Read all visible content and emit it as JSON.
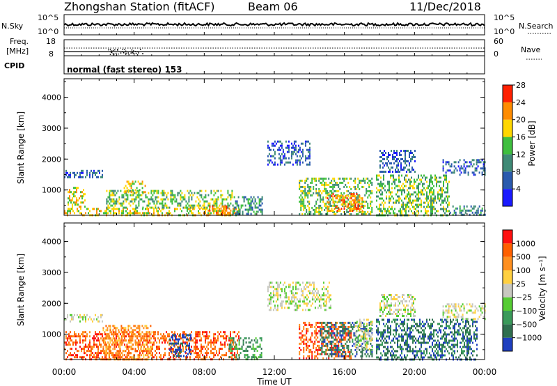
{
  "header": {
    "station": "Zhongshan Station (fitACF)",
    "beam": "Beam 06",
    "date": "11/Dec/2018"
  },
  "noise_panel": {
    "left_label": "N.Sky",
    "left_ticks": [
      "10^5",
      "10^0"
    ],
    "right_ticks": [
      "10^5",
      "10^0"
    ],
    "right_label": "N.Search"
  },
  "freq_panel": {
    "label_line1": "Freq.",
    "label_line2": "[MHz]",
    "left_ticks": [
      "18",
      "8"
    ],
    "right_ticks": [
      "60",
      "0"
    ],
    "right_label": "Nave"
  },
  "cpid_panel": {
    "label": "CPID",
    "text": "normal (fast stereo) 153"
  },
  "time_axis": {
    "label": "Time UT",
    "ticks": [
      "00:00",
      "04:00",
      "08:00",
      "12:00",
      "16:00",
      "20:00",
      "00:00"
    ]
  },
  "chart_data": [
    {
      "type": "heatmap",
      "name": "power",
      "ylabel": "Slant Range [km]",
      "yticks": [
        "1000",
        "2000",
        "3000",
        "4000"
      ],
      "ylim": [
        180,
        4600
      ],
      "xlim": [
        0,
        24
      ],
      "colorbar_label": "Power [dB]",
      "colorbar_ticks": [
        "4",
        "8",
        "12",
        "16",
        "20",
        "24",
        "28"
      ],
      "colorbar_colors": [
        "#1a1aff",
        "#2a5aae",
        "#3f8a76",
        "#3fbf3f",
        "#ffd700",
        "#ff8c00",
        "#ff2000"
      ],
      "regions": [
        {
          "t0": 0.0,
          "t1": 2.2,
          "r0": 1400,
          "r1": 1650,
          "level": 1
        },
        {
          "t0": 0.0,
          "t1": 10.0,
          "r0": 180,
          "r1": 420,
          "level": 4
        },
        {
          "t0": 0.2,
          "t1": 1.2,
          "r0": 400,
          "r1": 1100,
          "level": 4
        },
        {
          "t0": 2.4,
          "t1": 9.6,
          "r0": 400,
          "r1": 1000,
          "level": 3
        },
        {
          "t0": 3.4,
          "t1": 4.6,
          "r0": 900,
          "r1": 1300,
          "level": 4
        },
        {
          "t0": 8.2,
          "t1": 9.6,
          "r0": 200,
          "r1": 500,
          "level": 5
        },
        {
          "t0": 9.6,
          "t1": 11.3,
          "r0": 200,
          "r1": 800,
          "level": 2
        },
        {
          "t0": 11.6,
          "t1": 14.0,
          "r0": 1800,
          "r1": 2600,
          "level": 1
        },
        {
          "t0": 13.4,
          "t1": 17.6,
          "r0": 200,
          "r1": 1400,
          "level": 3
        },
        {
          "t0": 15.0,
          "t1": 17.0,
          "r0": 300,
          "r1": 900,
          "level": 5
        },
        {
          "t0": 17.8,
          "t1": 22.0,
          "r0": 200,
          "r1": 1500,
          "level": 3
        },
        {
          "t0": 18.0,
          "t1": 20.0,
          "r0": 1600,
          "r1": 2300,
          "level": 1
        },
        {
          "t0": 21.6,
          "t1": 24.0,
          "r0": 1500,
          "r1": 2000,
          "level": 1
        },
        {
          "t0": 22.0,
          "t1": 24.0,
          "r0": 200,
          "r1": 500,
          "level": 2
        }
      ]
    },
    {
      "type": "heatmap",
      "name": "velocity",
      "ylabel": "Slant Range [km]",
      "yticks": [
        "1000",
        "2000",
        "3000",
        "4000"
      ],
      "ylim": [
        180,
        4600
      ],
      "xlim": [
        0,
        24
      ],
      "colorbar_label": "Velocity [m s⁻¹]",
      "colorbar_ticks": [
        "1000",
        "500",
        "100",
        "25",
        "−25",
        "−100",
        "−500",
        "−1000"
      ],
      "colorbar_colors": [
        "#1f3fbf",
        "#2f6f4f",
        "#3a9a5a",
        "#55cc33",
        "#c8c8c0",
        "#ffd040",
        "#ff9020",
        "#ff6000",
        "#ff1010"
      ],
      "regions": [
        {
          "t0": 0.0,
          "t1": 2.2,
          "r0": 1400,
          "r1": 1650,
          "level": 4
        },
        {
          "t0": 0.0,
          "t1": 10.0,
          "r0": 180,
          "r1": 1100,
          "level": 7
        },
        {
          "t0": 2.2,
          "t1": 5.0,
          "r0": 200,
          "r1": 1300,
          "level": 6
        },
        {
          "t0": 6.0,
          "t1": 7.2,
          "r0": 300,
          "r1": 1000,
          "level": 0
        },
        {
          "t0": 9.4,
          "t1": 11.3,
          "r0": 200,
          "r1": 900,
          "level": 2
        },
        {
          "t0": 11.6,
          "t1": 15.2,
          "r0": 1800,
          "r1": 2700,
          "level": 4
        },
        {
          "t0": 13.4,
          "t1": 16.4,
          "r0": 200,
          "r1": 1400,
          "level": 7
        },
        {
          "t0": 14.6,
          "t1": 17.6,
          "r0": 300,
          "r1": 1400,
          "level": 1
        },
        {
          "t0": 16.6,
          "t1": 17.6,
          "r0": 500,
          "r1": 1500,
          "level": 4
        },
        {
          "t0": 17.8,
          "t1": 23.6,
          "r0": 200,
          "r1": 1500,
          "level": 1
        },
        {
          "t0": 18.0,
          "t1": 20.0,
          "r0": 1600,
          "r1": 2300,
          "level": 4
        },
        {
          "t0": 21.6,
          "t1": 24.0,
          "r0": 1500,
          "r1": 2000,
          "level": 4
        }
      ]
    }
  ]
}
